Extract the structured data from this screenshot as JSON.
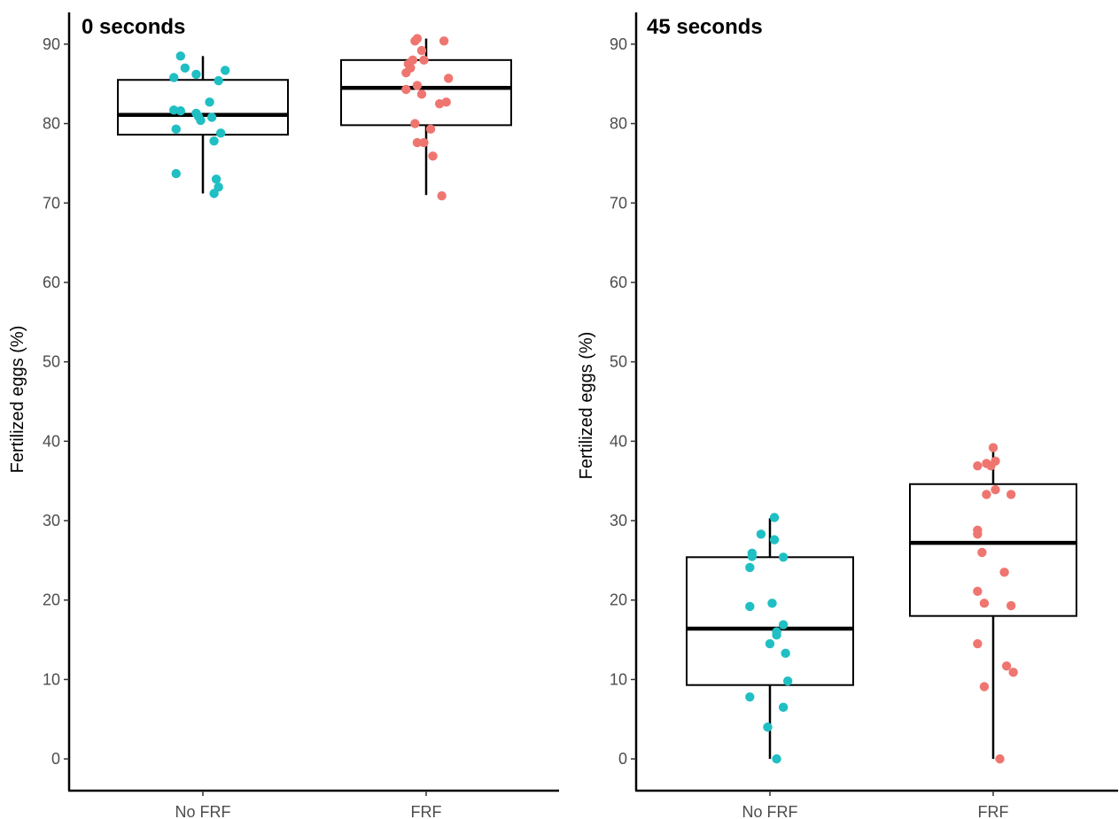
{
  "chart_data": [
    {
      "type": "box",
      "title": "0 seconds",
      "ylabel": "Fertilized eggs (%)",
      "xlabel": "",
      "categories": [
        "No FRF",
        "FRF"
      ],
      "ylim": [
        -4,
        94
      ],
      "yticks": [
        0,
        10,
        20,
        30,
        40,
        50,
        60,
        70,
        80,
        90
      ],
      "grid": false,
      "groups": [
        {
          "name": "No FRF",
          "color": "#1fbfc3",
          "q1": 78.6,
          "median": 81.1,
          "q3": 85.5,
          "whisker_low": 71.2,
          "whisker_high": 88.5,
          "points": [
            {
              "jx": -0.1,
              "y": 88.5
            },
            {
              "jx": -0.08,
              "y": 87.0
            },
            {
              "jx": -0.03,
              "y": 86.2
            },
            {
              "jx": 0.1,
              "y": 86.7
            },
            {
              "jx": -0.13,
              "y": 85.8
            },
            {
              "jx": 0.07,
              "y": 85.4
            },
            {
              "jx": 0.03,
              "y": 82.7
            },
            {
              "jx": -0.13,
              "y": 81.7
            },
            {
              "jx": -0.1,
              "y": 81.6
            },
            {
              "jx": -0.03,
              "y": 81.3
            },
            {
              "jx": -0.02,
              "y": 80.9
            },
            {
              "jx": 0.04,
              "y": 80.8
            },
            {
              "jx": -0.01,
              "y": 80.4
            },
            {
              "jx": -0.12,
              "y": 79.3
            },
            {
              "jx": 0.08,
              "y": 78.8
            },
            {
              "jx": 0.05,
              "y": 77.8
            },
            {
              "jx": -0.12,
              "y": 73.7
            },
            {
              "jx": 0.06,
              "y": 73.0
            },
            {
              "jx": 0.07,
              "y": 72.0
            },
            {
              "jx": 0.05,
              "y": 71.2
            }
          ]
        },
        {
          "name": "FRF",
          "color": "#ef7670",
          "q1": 79.8,
          "median": 84.5,
          "q3": 88.0,
          "whisker_low": 71.0,
          "whisker_high": 90.7,
          "points": [
            {
              "jx": -0.04,
              "y": 90.7
            },
            {
              "jx": -0.05,
              "y": 90.4
            },
            {
              "jx": 0.08,
              "y": 90.4
            },
            {
              "jx": -0.02,
              "y": 89.2
            },
            {
              "jx": -0.06,
              "y": 88.0
            },
            {
              "jx": -0.01,
              "y": 88.0
            },
            {
              "jx": -0.08,
              "y": 87.5
            },
            {
              "jx": -0.07,
              "y": 87.0
            },
            {
              "jx": -0.09,
              "y": 86.4
            },
            {
              "jx": 0.1,
              "y": 85.7
            },
            {
              "jx": -0.04,
              "y": 84.8
            },
            {
              "jx": -0.09,
              "y": 84.3
            },
            {
              "jx": -0.02,
              "y": 83.7
            },
            {
              "jx": 0.09,
              "y": 82.7
            },
            {
              "jx": 0.06,
              "y": 82.5
            },
            {
              "jx": -0.05,
              "y": 80.0
            },
            {
              "jx": 0.02,
              "y": 79.3
            },
            {
              "jx": -0.04,
              "y": 77.6
            },
            {
              "jx": -0.01,
              "y": 77.6
            },
            {
              "jx": 0.03,
              "y": 75.9
            },
            {
              "jx": 0.07,
              "y": 70.9
            }
          ]
        }
      ]
    },
    {
      "type": "box",
      "title": "45 seconds",
      "ylabel": "Fertilized eggs (%)",
      "xlabel": "",
      "categories": [
        "No FRF",
        "FRF"
      ],
      "ylim": [
        -4,
        94
      ],
      "yticks": [
        0,
        10,
        20,
        30,
        40,
        50,
        60,
        70,
        80,
        90
      ],
      "grid": false,
      "groups": [
        {
          "name": "No FRF",
          "color": "#1fbfc3",
          "q1": 9.3,
          "median": 16.4,
          "q3": 25.4,
          "whisker_low": 0.0,
          "whisker_high": 30.3,
          "points": [
            {
              "jx": 0.02,
              "y": 30.4
            },
            {
              "jx": -0.04,
              "y": 28.3
            },
            {
              "jx": 0.02,
              "y": 27.6
            },
            {
              "jx": -0.08,
              "y": 25.9
            },
            {
              "jx": -0.08,
              "y": 25.5
            },
            {
              "jx": 0.06,
              "y": 25.4
            },
            {
              "jx": -0.09,
              "y": 24.1
            },
            {
              "jx": 0.01,
              "y": 19.6
            },
            {
              "jx": -0.09,
              "y": 19.2
            },
            {
              "jx": 0.06,
              "y": 16.9
            },
            {
              "jx": 0.03,
              "y": 16.0
            },
            {
              "jx": 0.03,
              "y": 15.6
            },
            {
              "jx": -0.0,
              "y": 14.5
            },
            {
              "jx": 0.07,
              "y": 13.3
            },
            {
              "jx": 0.08,
              "y": 9.8
            },
            {
              "jx": -0.09,
              "y": 7.8
            },
            {
              "jx": 0.06,
              "y": 6.5
            },
            {
              "jx": -0.01,
              "y": 4.0
            },
            {
              "jx": 0.03,
              "y": 0.0
            }
          ]
        },
        {
          "name": "FRF",
          "color": "#ef7670",
          "q1": 18.0,
          "median": 27.2,
          "q3": 34.6,
          "whisker_low": 0.0,
          "whisker_high": 38.8,
          "points": [
            {
              "jx": 0.0,
              "y": 39.2
            },
            {
              "jx": 0.01,
              "y": 37.5
            },
            {
              "jx": -0.03,
              "y": 37.2
            },
            {
              "jx": -0.07,
              "y": 36.9
            },
            {
              "jx": -0.01,
              "y": 36.9
            },
            {
              "jx": 0.01,
              "y": 33.9
            },
            {
              "jx": -0.03,
              "y": 33.3
            },
            {
              "jx": 0.08,
              "y": 33.3
            },
            {
              "jx": -0.07,
              "y": 28.8
            },
            {
              "jx": -0.07,
              "y": 28.3
            },
            {
              "jx": -0.05,
              "y": 26.0
            },
            {
              "jx": 0.05,
              "y": 23.5
            },
            {
              "jx": -0.07,
              "y": 21.1
            },
            {
              "jx": -0.04,
              "y": 19.6
            },
            {
              "jx": 0.08,
              "y": 19.3
            },
            {
              "jx": -0.07,
              "y": 14.5
            },
            {
              "jx": 0.06,
              "y": 11.7
            },
            {
              "jx": 0.09,
              "y": 10.9
            },
            {
              "jx": -0.04,
              "y": 9.1
            },
            {
              "jx": 0.03,
              "y": 0.0
            }
          ]
        }
      ]
    }
  ]
}
